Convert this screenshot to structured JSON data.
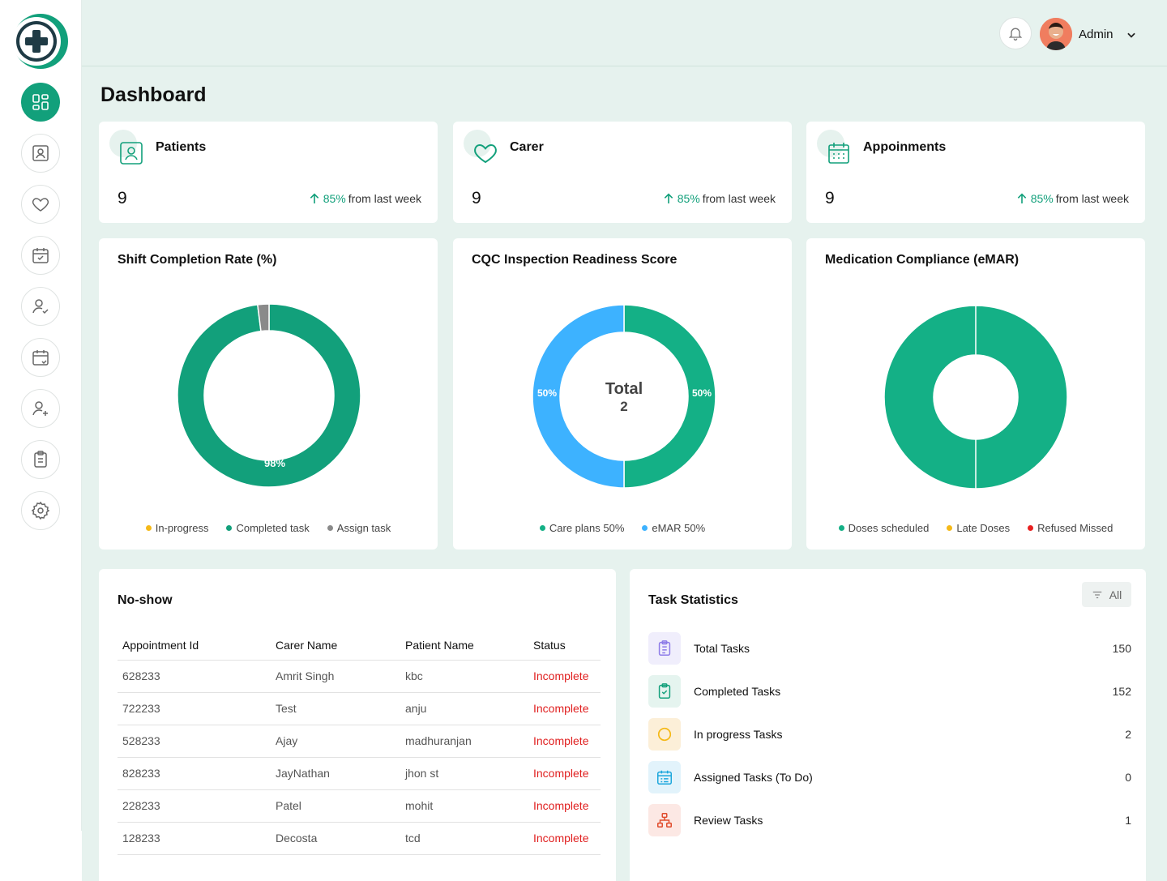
{
  "user": {
    "name": "Admin"
  },
  "page": {
    "title": "Dashboard"
  },
  "stats": [
    {
      "label": "Patients",
      "value": "9",
      "trend_pct": "85%",
      "trend_text": "from last week",
      "icon": "user-card-icon"
    },
    {
      "label": "Carer",
      "value": "9",
      "trend_pct": "85%",
      "trend_text": "from last week",
      "icon": "heart-icon"
    },
    {
      "label": "Appoinments",
      "value": "9",
      "trend_pct": "85%",
      "trend_text": "from last week",
      "icon": "calendar-icon"
    }
  ],
  "charts": {
    "shift": {
      "title": "Shift Completion Rate (%)",
      "data_label": "98%",
      "legend": [
        "In-progress",
        "Completed task",
        "Assign task"
      ]
    },
    "cqc": {
      "title": "CQC Inspection Readiness Score",
      "center_title": "Total",
      "center_value": "2",
      "left_label": "50%",
      "right_label": "50%",
      "legend": [
        "Care plans 50%",
        "eMAR 50%"
      ]
    },
    "emar": {
      "title": "Medication Compliance (eMAR)",
      "legend": [
        "Doses scheduled",
        "Late Doses",
        "Refused Missed"
      ]
    }
  },
  "chart_data": [
    {
      "type": "pie",
      "title": "Shift Completion Rate (%)",
      "categories": [
        "In-progress",
        "Completed task",
        "Assign task"
      ],
      "values": [
        0,
        98,
        2
      ],
      "colors": [
        "#f5b918",
        "#12a07b",
        "#8a8a8a"
      ],
      "data_labels": [
        "",
        "98%",
        ""
      ],
      "legend": "bottom"
    },
    {
      "type": "pie",
      "title": "CQC Inspection Readiness Score",
      "categories": [
        "Care plans",
        "eMAR"
      ],
      "values": [
        50,
        50
      ],
      "colors": [
        "#14b086",
        "#3db2ff"
      ],
      "center_text": "Total 2",
      "legend": "bottom"
    },
    {
      "type": "pie",
      "title": "Medication Compliance (eMAR)",
      "categories": [
        "Doses scheduled",
        "Late Doses",
        "Refused Missed"
      ],
      "values": [
        100,
        0,
        0
      ],
      "colors": [
        "#14b086",
        "#f5b918",
        "#e82020"
      ],
      "legend": "bottom"
    }
  ],
  "noshow": {
    "title": "No-show",
    "columns": [
      "Appointment Id",
      "Carer Name",
      "Patient Name",
      "Status"
    ],
    "rows": [
      [
        "628233",
        "Amrit Singh",
        "kbc",
        "Incomplete"
      ],
      [
        "722233",
        "Test",
        "anju",
        "Incomplete"
      ],
      [
        "528233",
        "Ajay",
        "madhuranjan",
        "Incomplete"
      ],
      [
        "828233",
        "JayNathan",
        "jhon st",
        "Incomplete"
      ],
      [
        "228233",
        "Patel",
        "mohit",
        "Incomplete"
      ],
      [
        "128233",
        "Decosta",
        "tcd",
        "Incomplete"
      ]
    ]
  },
  "tasks": {
    "title": "Task Statistics",
    "filter_label": "All",
    "items": [
      {
        "label": "Total Tasks",
        "count": "150",
        "icon": "clipboard-list-icon",
        "bg": "#f0eefc",
        "color": "#8d7be8"
      },
      {
        "label": "Completed Tasks",
        "count": "152",
        "icon": "clipboard-check-icon",
        "bg": "#e5f4ef",
        "color": "#12a07b"
      },
      {
        "label": "In progress Tasks",
        "count": "2",
        "icon": "spinner-icon",
        "bg": "#fcefd8",
        "color": "#f5b918"
      },
      {
        "label": "Assigned Tasks (To Do)",
        "count": "0",
        "icon": "calendar-list-icon",
        "bg": "#e2f3fb",
        "color": "#1aa6dc"
      },
      {
        "label": "Review Tasks",
        "count": "1",
        "icon": "hierarchy-icon",
        "bg": "#fce8e4",
        "color": "#e04a2a"
      }
    ]
  },
  "colors": {
    "accent": "#12a07b",
    "background": "#e6f2ee",
    "danger": "#e02020"
  }
}
